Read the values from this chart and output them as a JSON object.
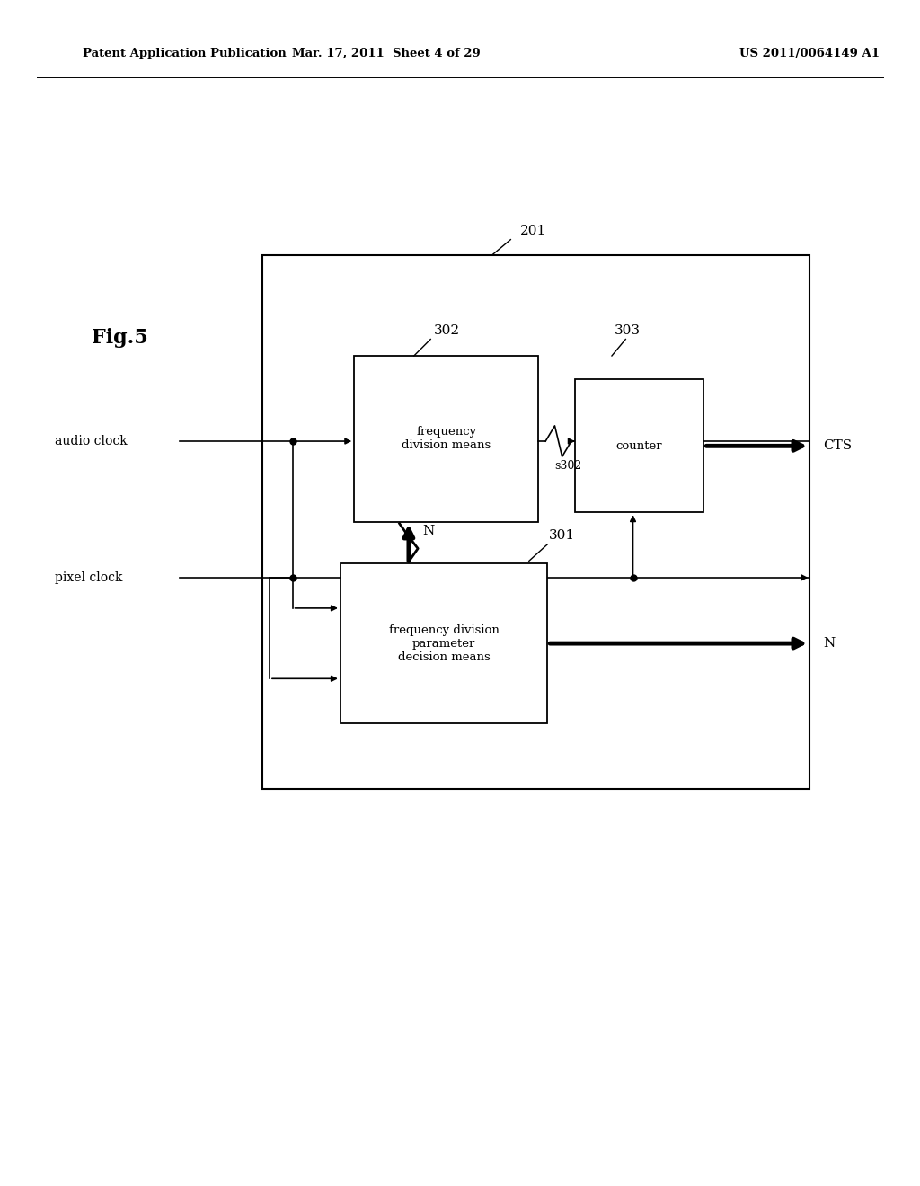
{
  "bg_color": "#ffffff",
  "header_left": "Patent Application Publication",
  "header_mid": "Mar. 17, 2011  Sheet 4 of 29",
  "header_right": "US 2011/0064149 A1",
  "fig_label": "Fig.5",
  "label_201": "201",
  "label_302": "302",
  "label_303": "303",
  "label_301": "301",
  "label_s302": "s302",
  "label_N_up": "N",
  "label_N_out": "N",
  "label_CTS": "CTS",
  "box302_text": "frequency\ndivision means",
  "box303_text": "counter",
  "box301_text": "frequency division\nparameter\ndecision means",
  "text_audio_clock": "audio clock",
  "text_pixel_clock": "pixel clock"
}
